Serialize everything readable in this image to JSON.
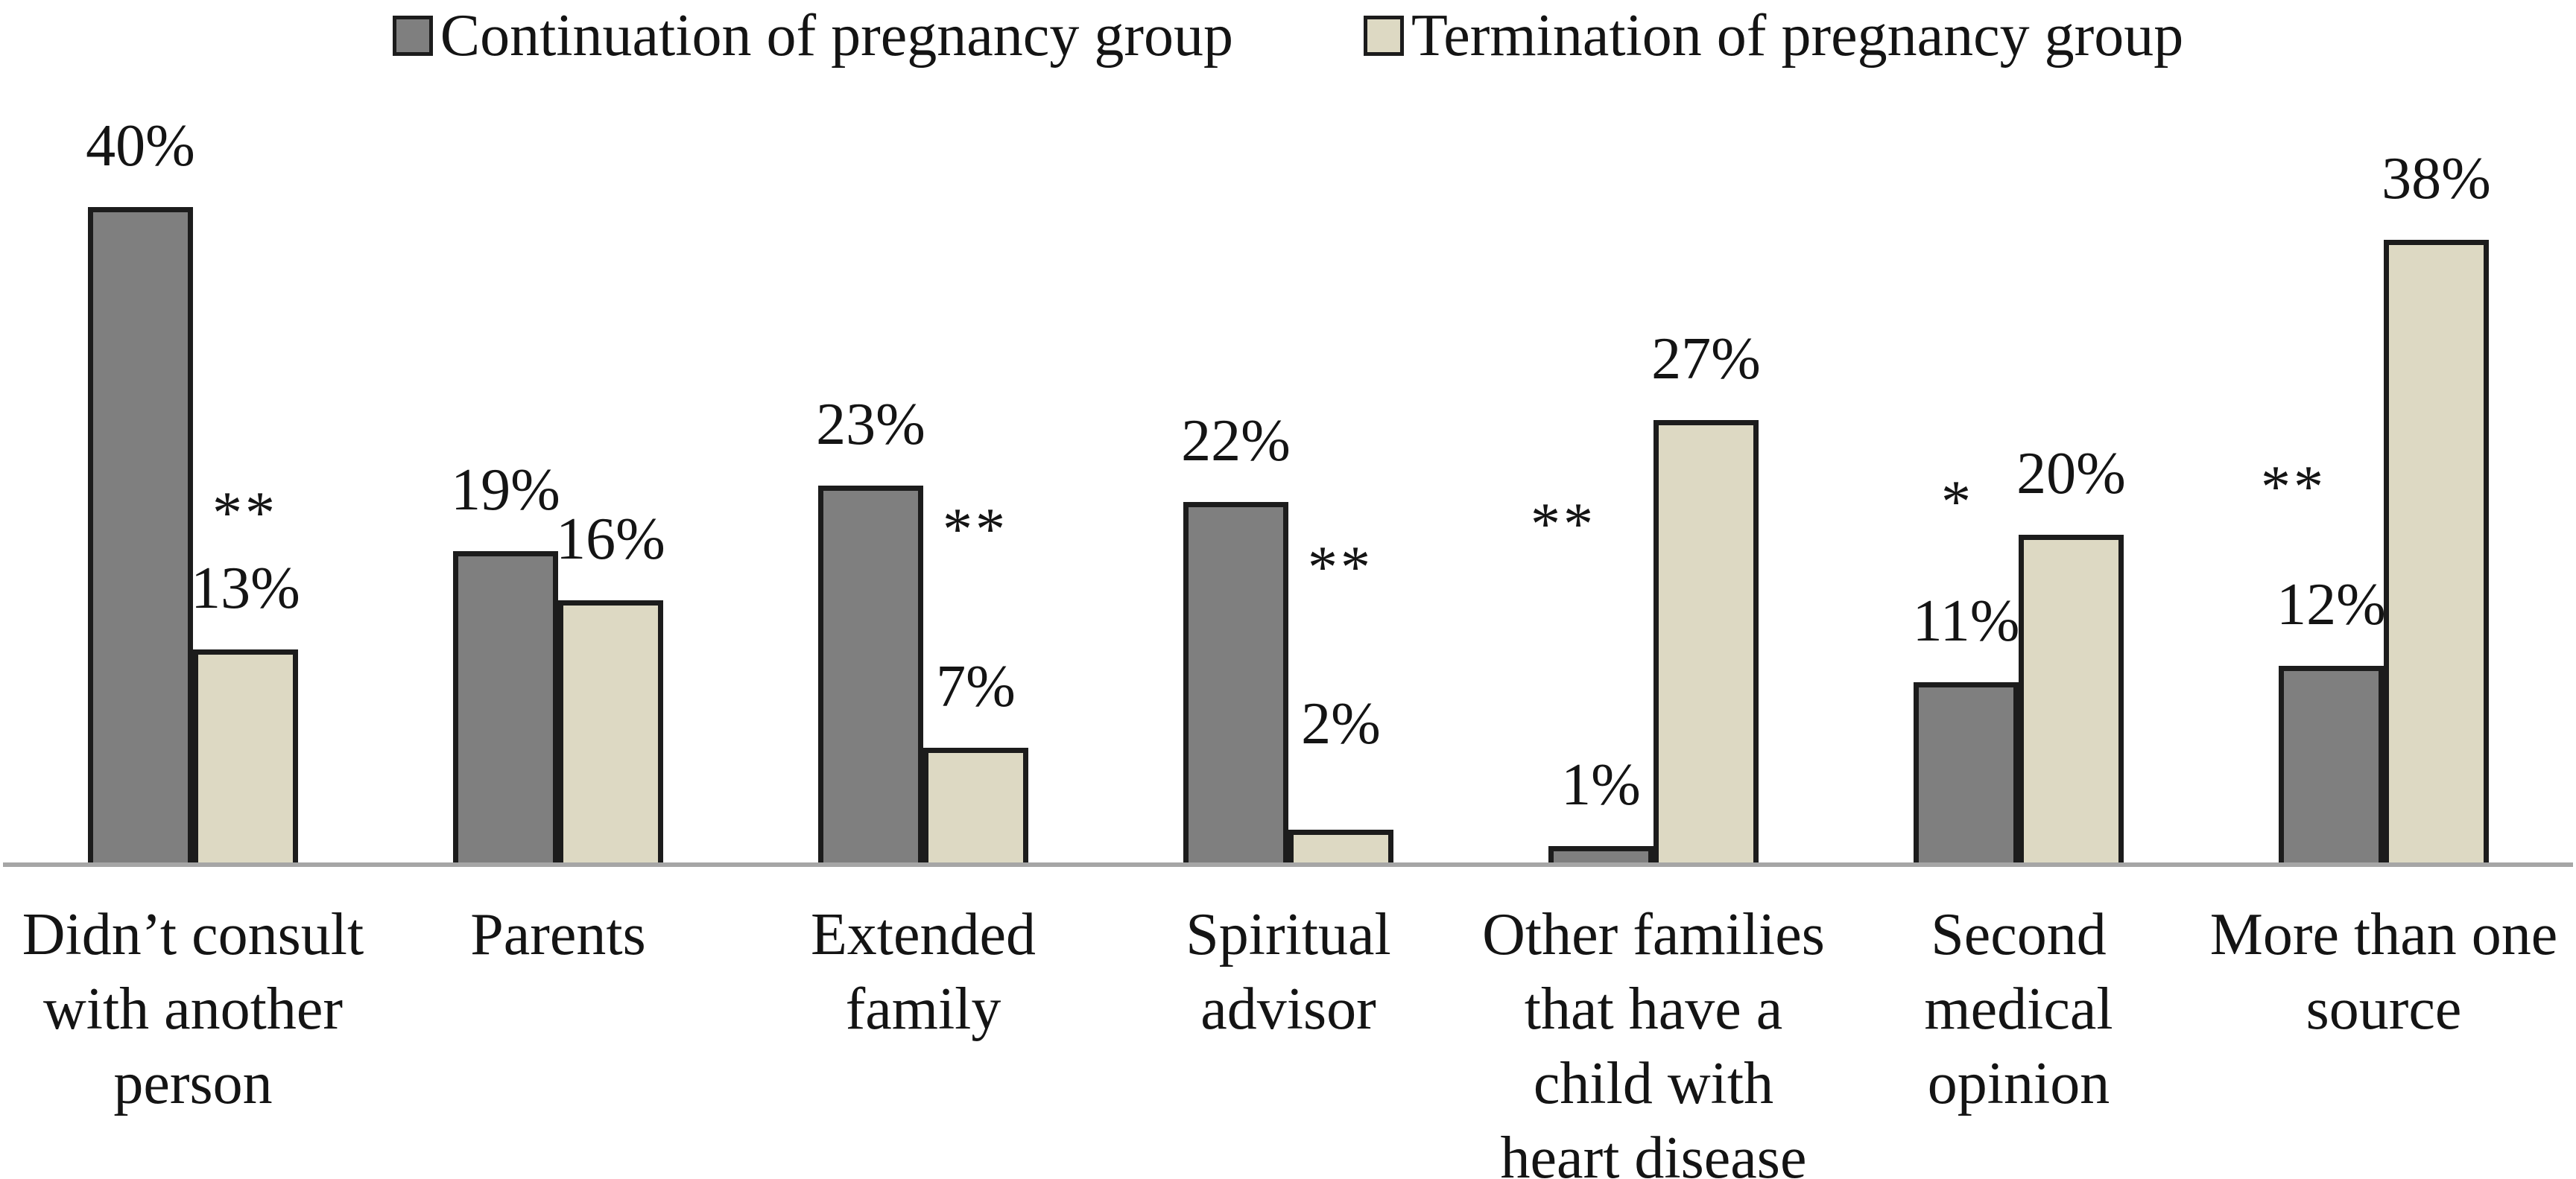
{
  "legend": [
    {
      "label": "Continuation of pregnancy group",
      "color": "#7f7f7f"
    },
    {
      "label": "Termination of pregnancy group",
      "color": "#ddd9c3"
    }
  ],
  "chart_data": {
    "type": "bar",
    "title": "",
    "xlabel": "",
    "ylabel": "",
    "ylim": [
      0,
      44
    ],
    "grid": false,
    "legend_position": "top",
    "axis_line_color": "#a6a6a6",
    "bar_border_color": "#1c1c1c",
    "categories": [
      "Didn’t consult\nwith another\nperson",
      "Parents",
      "Extended\nfamily",
      "Spiritual\nadvisor",
      "Other families\nthat have a\nchild with\nheart disease",
      "Second\nmedical\nopinion",
      "More than one\nsource"
    ],
    "series": [
      {
        "name": "Continuation of pregnancy group",
        "color": "#7f7f7f",
        "values": [
          40,
          19,
          23,
          22,
          1,
          11,
          12
        ]
      },
      {
        "name": "Termination of pregnancy group",
        "color": "#ddd9c3",
        "values": [
          13,
          16,
          7,
          2,
          27,
          20,
          38
        ]
      }
    ],
    "value_label_format": "{v}%",
    "significance_markers": [
      {
        "category_index": 0,
        "marker": "**",
        "near": "termination"
      },
      {
        "category_index": 2,
        "marker": "**",
        "near": "termination"
      },
      {
        "category_index": 3,
        "marker": "**",
        "near": "termination"
      },
      {
        "category_index": 4,
        "marker": "**",
        "near": "continuation"
      },
      {
        "category_index": 5,
        "marker": "*",
        "near": "continuation"
      },
      {
        "category_index": 6,
        "marker": "**",
        "near": "continuation"
      }
    ]
  }
}
